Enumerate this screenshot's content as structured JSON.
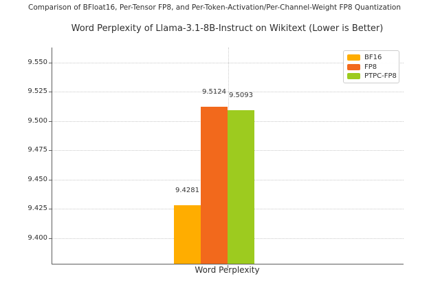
{
  "figure": {
    "suptitle": "Comparison of BFloat16, Per-Tensor FP8, and Per-Token-Activation/Per-Channel-Weight FP8 Quantization"
  },
  "chart_data": {
    "type": "bar",
    "title": "Word Perplexity of Llama-3.1-8B-Instruct on Wikitext (Lower is Better)",
    "categories": [
      "Word Perplexity"
    ],
    "series": [
      {
        "name": "BF16",
        "values": [
          9.4281
        ],
        "value_label": "9.4281",
        "color": "#ffad00"
      },
      {
        "name": "FP8",
        "values": [
          9.5124
        ],
        "value_label": "9.5124",
        "color": "#f2691c"
      },
      {
        "name": "PTPC-FP8",
        "values": [
          9.5093
        ],
        "value_label": "9.5093",
        "color": "#9dcb1f"
      }
    ],
    "xlabel": "Word Perplexity",
    "ylabel": "",
    "ylim": [
      9.378,
      9.563
    ],
    "yticks": [
      9.4,
      9.425,
      9.45,
      9.475,
      9.5,
      9.525,
      9.55
    ],
    "ytick_labels": [
      "9.400",
      "9.425",
      "9.450",
      "9.475",
      "9.500",
      "9.525",
      "9.550"
    ],
    "grid": true,
    "legend": {
      "position": "upper right",
      "entries": [
        "BF16",
        "FP8",
        "PTPC-FP8"
      ]
    },
    "colors": {
      "spine": "#5c5c5c",
      "grid": "#c9c9c9",
      "text": "#2e2e2e"
    }
  }
}
